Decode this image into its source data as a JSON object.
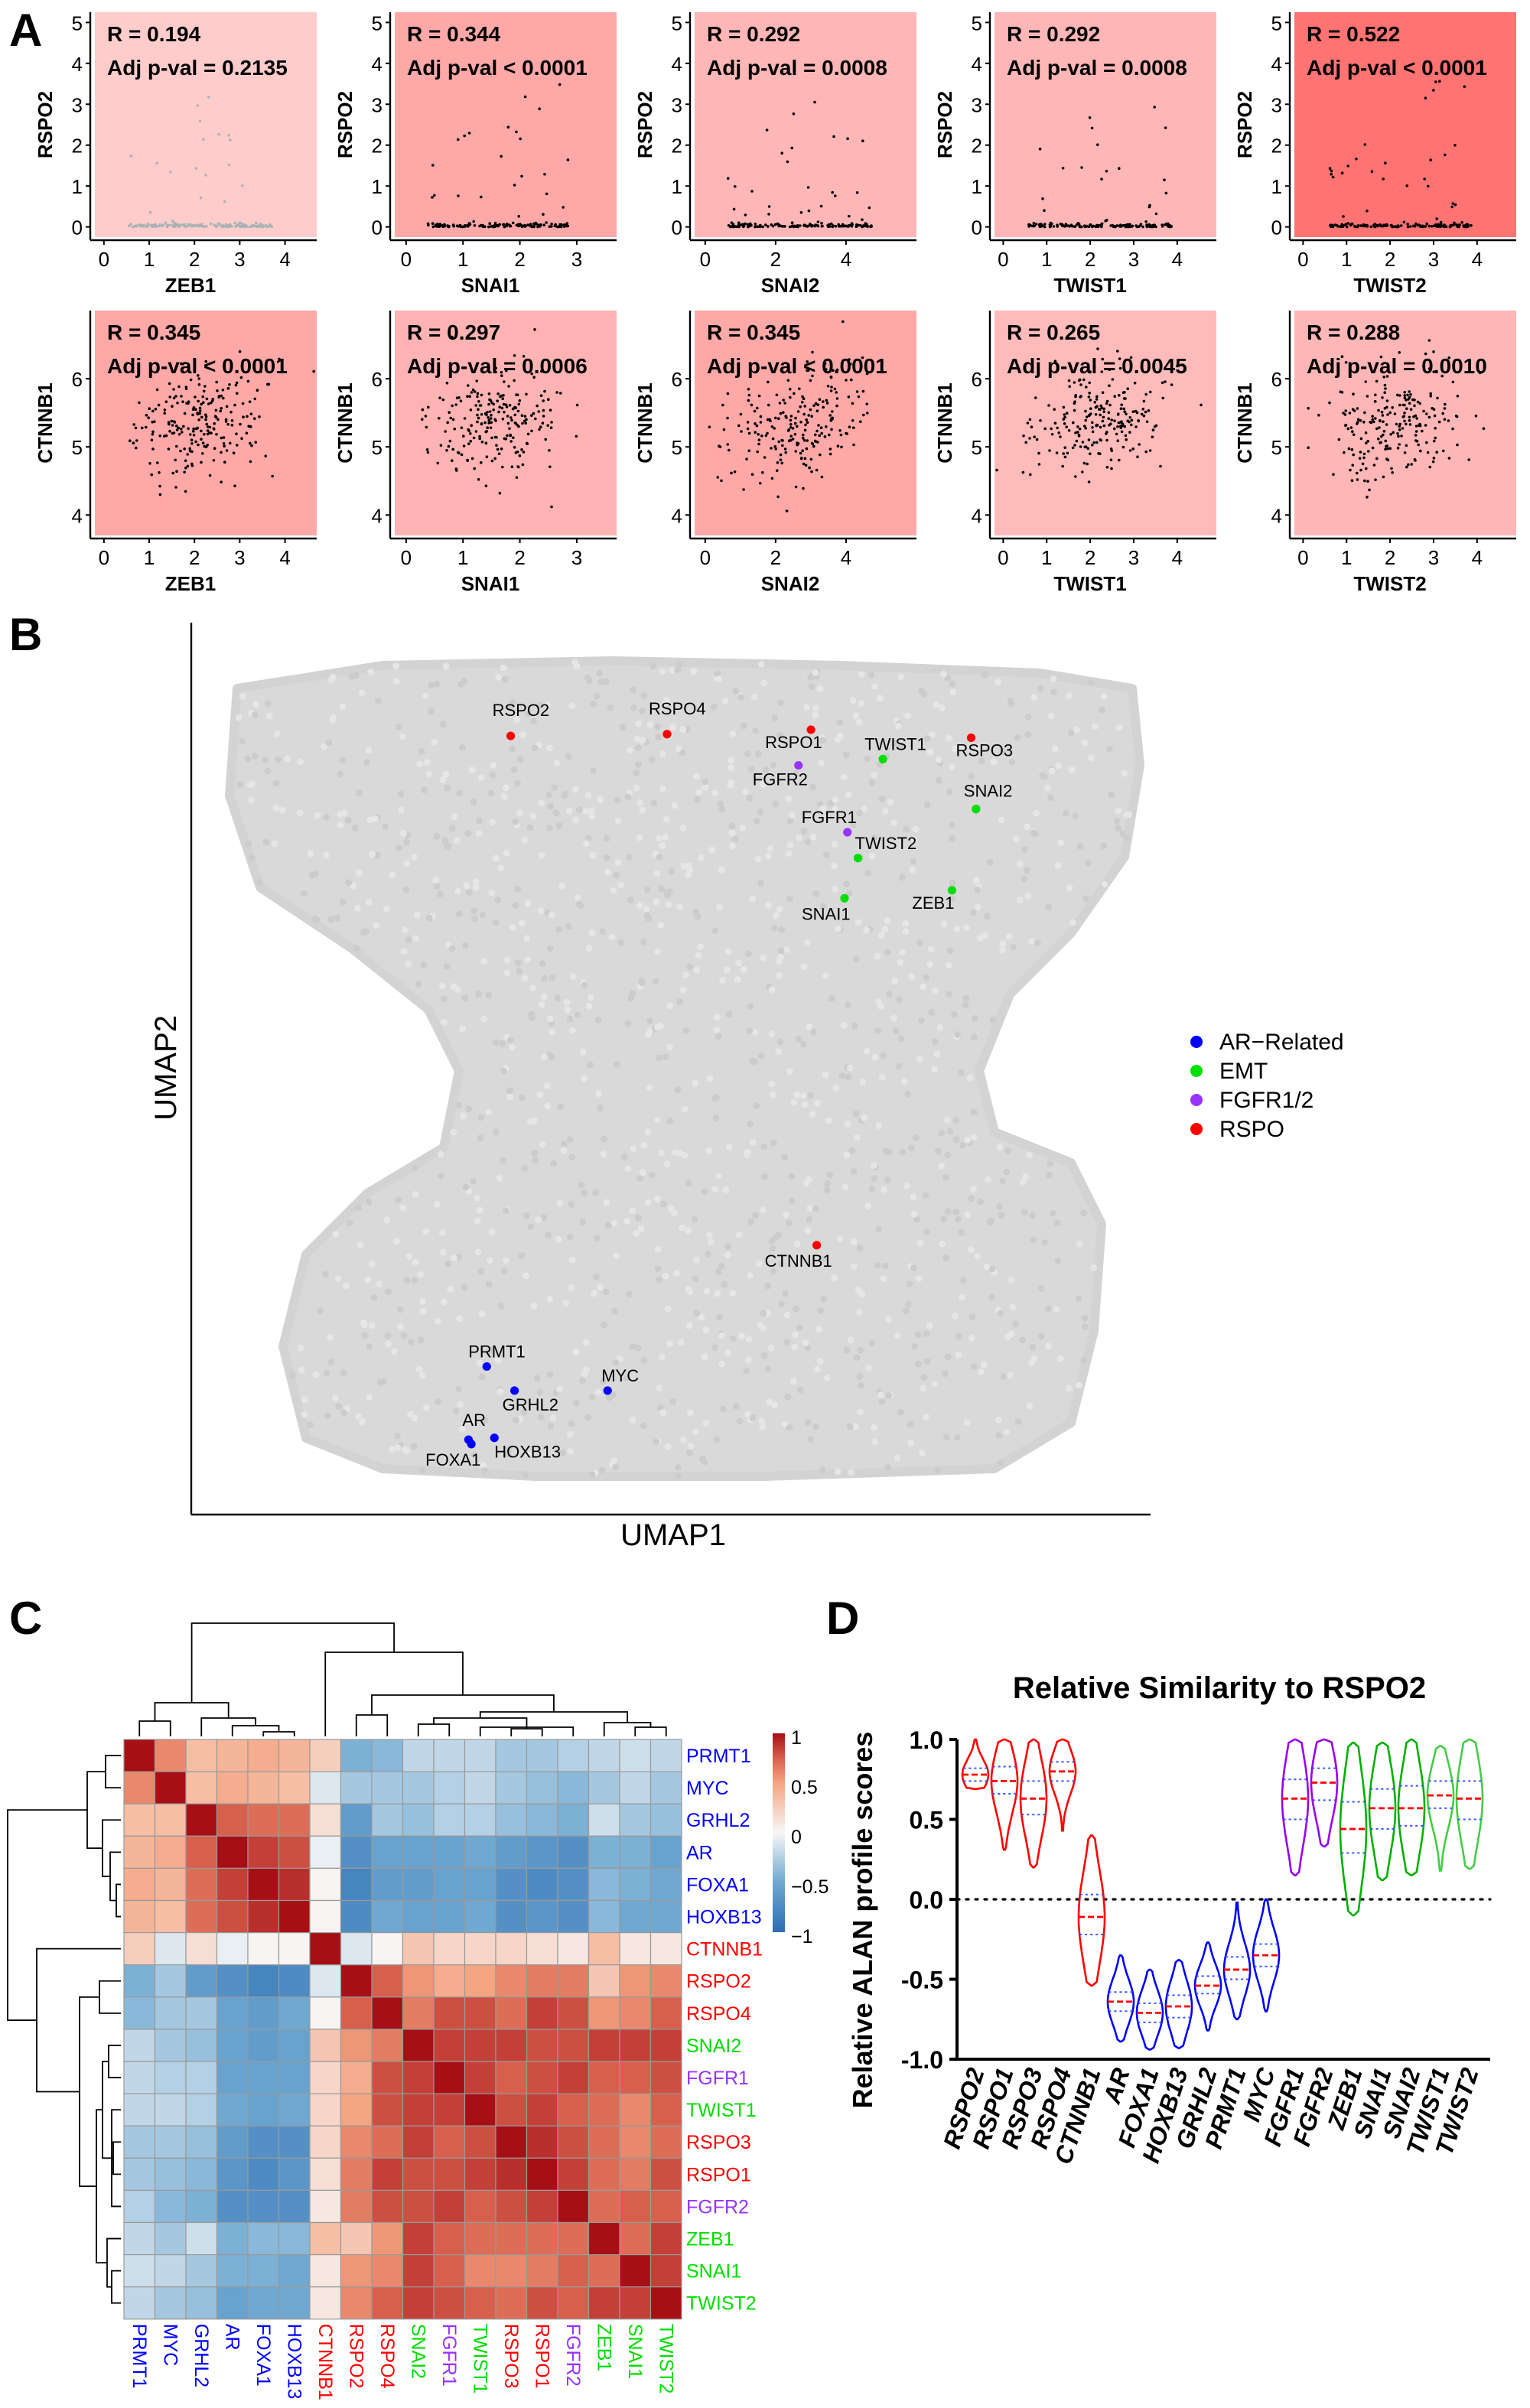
{
  "panel_labels": [
    "A",
    "B",
    "C",
    "D"
  ],
  "chart_data": [
    {
      "panel": "A",
      "type": "scatter",
      "rows": [
        {
          "ylabel": "RSPO2",
          "yticks": [
            0,
            1,
            2,
            3,
            4,
            5
          ],
          "ylim": [
            -0.25,
            5.25
          ],
          "plots": [
            {
              "xlabel": "ZEB1",
              "xticks": [
                0,
                1,
                2,
                3,
                4
              ],
              "xlim": [
                -0.2,
                4.7
              ],
              "r_text": "R = 0.194",
              "p_text": "Adj p-val = 0.2135",
              "bg": "#ffcccc",
              "point_color": "#a9b4b4"
            },
            {
              "xlabel": "SNAI1",
              "xticks": [
                0,
                1,
                2,
                3
              ],
              "xlim": [
                -0.2,
                3.7
              ],
              "r_text": "R = 0.344",
              "p_text": "Adj p-val < 0.0001",
              "bg": "#ffa8a8",
              "point_color": "#000000"
            },
            {
              "xlabel": "SNAI2",
              "xticks": [
                0,
                2,
                4
              ],
              "xlim": [
                -0.3,
                6.0
              ],
              "r_text": "R = 0.292",
              "p_text": "Adj p-val = 0.0008",
              "bg": "#ffb6b6",
              "point_color": "#000000"
            },
            {
              "xlabel": "TWIST1",
              "xticks": [
                0,
                1,
                2,
                3,
                4
              ],
              "xlim": [
                -0.2,
                4.9
              ],
              "r_text": "R = 0.292",
              "p_text": "Adj p-val = 0.0008",
              "bg": "#ffb6b6",
              "point_color": "#000000"
            },
            {
              "xlabel": "TWIST2",
              "xticks": [
                0,
                1,
                2,
                3,
                4
              ],
              "xlim": [
                -0.2,
                4.9
              ],
              "r_text": "R = 0.522",
              "p_text": "Adj p-val < 0.0001",
              "bg": "#ff7373",
              "point_color": "#000000"
            }
          ]
        },
        {
          "ylabel": "CTNNB1",
          "yticks": [
            4,
            5,
            6
          ],
          "ylim": [
            3.7,
            7.0
          ],
          "plots": [
            {
              "xlabel": "ZEB1",
              "xticks": [
                0,
                1,
                2,
                3,
                4
              ],
              "xlim": [
                -0.2,
                4.7
              ],
              "r_text": "R = 0.345",
              "p_text": "Adj p-val < 0.0001",
              "bg": "#ffa8a8",
              "point_color": "#000000"
            },
            {
              "xlabel": "SNAI1",
              "xticks": [
                0,
                1,
                2,
                3
              ],
              "xlim": [
                -0.2,
                3.7
              ],
              "r_text": "R = 0.297",
              "p_text": "Adj p-val = 0.0006",
              "bg": "#ffb3b3",
              "point_color": "#000000"
            },
            {
              "xlabel": "SNAI2",
              "xticks": [
                0,
                2,
                4
              ],
              "xlim": [
                -0.3,
                6.0
              ],
              "r_text": "R = 0.345",
              "p_text": "Adj p-val < 0.0001",
              "bg": "#ffa8a8",
              "point_color": "#000000"
            },
            {
              "xlabel": "TWIST1",
              "xticks": [
                0,
                1,
                2,
                3,
                4
              ],
              "xlim": [
                -0.2,
                4.9
              ],
              "r_text": "R = 0.265",
              "p_text": "Adj p-val = 0.0045",
              "bg": "#ffbaba",
              "point_color": "#000000"
            },
            {
              "xlabel": "TWIST2",
              "xticks": [
                0,
                1,
                2,
                3,
                4
              ],
              "xlim": [
                -0.2,
                4.9
              ],
              "r_text": "R = 0.288",
              "p_text": "Adj p-val = 0.0010",
              "bg": "#ffb6b6",
              "point_color": "#000000"
            }
          ]
        }
      ]
    },
    {
      "panel": "B",
      "type": "scatter",
      "xlabel": "UMAP1",
      "ylabel": "UMAP2",
      "background_point_color": "#d3d3d3",
      "legend": {
        "placement": "right",
        "entries": [
          {
            "label": "AR−Related",
            "color": "#0000ff"
          },
          {
            "label": "EMT",
            "color": "#00e000"
          },
          {
            "label": "FGFR1/2",
            "color": "#9933ff"
          },
          {
            "label": "RSPO",
            "color": "#ff0000"
          }
        ]
      },
      "highlighted_genes": [
        {
          "label": "RSPO2",
          "group": "RSPO",
          "umap1": 3.33,
          "umap2": 8.73
        },
        {
          "label": "RSPO4",
          "group": "RSPO",
          "umap1": 4.96,
          "umap2": 8.75
        },
        {
          "label": "RSPO1",
          "group": "RSPO",
          "umap1": 6.46,
          "umap2": 8.8
        },
        {
          "label": "RSPO3",
          "group": "RSPO",
          "umap1": 8.13,
          "umap2": 8.71
        },
        {
          "label": "TWIST1",
          "group": "EMT",
          "umap1": 7.21,
          "umap2": 8.47
        },
        {
          "label": "FGFR2",
          "group": "FGFR1/2",
          "umap1": 6.33,
          "umap2": 8.4
        },
        {
          "label": "SNAI2",
          "group": "EMT",
          "umap1": 8.18,
          "umap2": 7.91
        },
        {
          "label": "FGFR1",
          "group": "FGFR1/2",
          "umap1": 6.84,
          "umap2": 7.65
        },
        {
          "label": "TWIST2",
          "group": "EMT",
          "umap1": 6.95,
          "umap2": 7.36
        },
        {
          "label": "ZEB1",
          "group": "EMT",
          "umap1": 7.93,
          "umap2": 7.0
        },
        {
          "label": "SNAI1",
          "group": "EMT",
          "umap1": 6.81,
          "umap2": 6.91
        },
        {
          "label": "CTNNB1",
          "group": "RSPO",
          "umap1": 6.52,
          "umap2": 3.02
        },
        {
          "label": "PRMT1",
          "group": "AR−Related",
          "umap1": 3.08,
          "umap2": 1.66
        },
        {
          "label": "GRHL2",
          "group": "AR−Related",
          "umap1": 3.37,
          "umap2": 1.39
        },
        {
          "label": "MYC",
          "group": "AR−Related",
          "umap1": 4.34,
          "umap2": 1.39
        },
        {
          "label": "AR",
          "group": "AR−Related",
          "umap1": 2.89,
          "umap2": 0.84
        },
        {
          "label": "HOXB13",
          "group": "AR−Related",
          "umap1": 3.16,
          "umap2": 0.86
        },
        {
          "label": "FOXA1",
          "group": "AR−Related",
          "umap1": 2.92,
          "umap2": 0.79
        }
      ]
    },
    {
      "panel": "C",
      "type": "heatmap",
      "labels": [
        "PRMT1",
        "MYC",
        "GRHL2",
        "AR",
        "FOXA1",
        "HOXB13",
        "CTNNB1",
        "RSPO2",
        "RSPO4",
        "SNAI2",
        "FGFR1",
        "TWIST1",
        "RSPO3",
        "RSPO1",
        "FGFR2",
        "ZEB1",
        "SNAI1",
        "TWIST2"
      ],
      "label_colors": [
        "#0000ff",
        "#0000ff",
        "#0000ff",
        "#0000ff",
        "#0000ff",
        "#0000ff",
        "#ff0000",
        "#ff0000",
        "#ff0000",
        "#00dd00",
        "#9933ff",
        "#00dd00",
        "#ff0000",
        "#ff0000",
        "#9933ff",
        "#00dd00",
        "#00dd00",
        "#00dd00"
      ],
      "colorbar": {
        "ticks": [
          "1",
          "0.5",
          "0",
          "−0.5",
          "−1"
        ],
        "range": [
          -1,
          1
        ],
        "low_color": "#2c6db2",
        "mid_color": "#f7f7f7",
        "high_color": "#a50f15"
      },
      "values": [
        [
          1,
          0.6,
          0.35,
          0.4,
          0.45,
          0.4,
          0.25,
          -0.45,
          -0.4,
          -0.2,
          -0.2,
          -0.2,
          -0.3,
          -0.3,
          -0.25,
          -0.2,
          -0.15,
          -0.2
        ],
        [
          0.6,
          1,
          0.35,
          0.45,
          0.4,
          0.35,
          -0.1,
          -0.3,
          -0.3,
          -0.3,
          -0.25,
          -0.2,
          -0.3,
          -0.35,
          -0.4,
          -0.3,
          -0.2,
          -0.3
        ],
        [
          0.35,
          0.35,
          1,
          0.75,
          0.7,
          0.7,
          0.15,
          -0.6,
          -0.3,
          -0.35,
          -0.25,
          -0.25,
          -0.35,
          -0.4,
          -0.45,
          -0.15,
          -0.3,
          -0.35
        ],
        [
          0.4,
          0.45,
          0.75,
          1,
          0.85,
          0.8,
          -0.05,
          -0.7,
          -0.55,
          -0.55,
          -0.55,
          -0.5,
          -0.6,
          -0.65,
          -0.7,
          -0.45,
          -0.45,
          -0.55
        ],
        [
          0.45,
          0.4,
          0.7,
          0.85,
          1,
          0.9,
          0.02,
          -0.8,
          -0.6,
          -0.6,
          -0.55,
          -0.55,
          -0.7,
          -0.75,
          -0.7,
          -0.4,
          -0.45,
          -0.5
        ],
        [
          0.4,
          0.35,
          0.7,
          0.8,
          0.9,
          1,
          0.02,
          -0.75,
          -0.5,
          -0.55,
          -0.55,
          -0.5,
          -0.7,
          -0.65,
          -0.7,
          -0.4,
          -0.5,
          -0.5
        ],
        [
          0.25,
          -0.1,
          0.15,
          -0.05,
          0.02,
          0.02,
          1,
          -0.1,
          0.02,
          0.3,
          0.2,
          0.2,
          0.2,
          0.15,
          0.1,
          0.35,
          0.1,
          0.1
        ],
        [
          -0.45,
          -0.3,
          -0.6,
          -0.7,
          -0.8,
          -0.75,
          -0.1,
          1,
          0.75,
          0.55,
          0.45,
          0.5,
          0.6,
          0.65,
          0.65,
          0.3,
          0.55,
          0.6
        ],
        [
          -0.4,
          -0.3,
          -0.3,
          -0.55,
          -0.6,
          -0.5,
          0.02,
          0.75,
          1,
          0.65,
          0.8,
          0.8,
          0.7,
          0.85,
          0.8,
          0.55,
          0.6,
          0.75
        ],
        [
          -0.2,
          -0.3,
          -0.35,
          -0.55,
          -0.6,
          -0.55,
          0.3,
          0.55,
          0.65,
          1,
          0.85,
          0.85,
          0.85,
          0.8,
          0.8,
          0.85,
          0.85,
          0.85
        ],
        [
          -0.2,
          -0.25,
          -0.25,
          -0.55,
          -0.55,
          -0.55,
          0.2,
          0.45,
          0.8,
          0.85,
          1,
          0.85,
          0.75,
          0.8,
          0.85,
          0.75,
          0.75,
          0.8
        ],
        [
          -0.2,
          -0.2,
          -0.25,
          -0.5,
          -0.55,
          -0.5,
          0.2,
          0.5,
          0.8,
          0.85,
          0.85,
          1,
          0.8,
          0.85,
          0.75,
          0.7,
          0.6,
          0.75
        ],
        [
          -0.3,
          -0.3,
          -0.35,
          -0.6,
          -0.7,
          -0.7,
          0.2,
          0.6,
          0.7,
          0.85,
          0.75,
          0.8,
          1,
          0.9,
          0.8,
          0.7,
          0.6,
          0.7
        ],
        [
          -0.3,
          -0.35,
          -0.4,
          -0.65,
          -0.75,
          -0.65,
          0.15,
          0.65,
          0.85,
          0.8,
          0.8,
          0.85,
          0.9,
          1,
          0.85,
          0.7,
          0.65,
          0.8
        ],
        [
          -0.25,
          -0.4,
          -0.45,
          -0.7,
          -0.7,
          -0.7,
          0.1,
          0.65,
          0.8,
          0.8,
          0.85,
          0.75,
          0.8,
          0.85,
          1,
          0.7,
          0.75,
          0.75
        ],
        [
          -0.2,
          -0.3,
          -0.15,
          -0.45,
          -0.4,
          -0.4,
          0.35,
          0.3,
          0.55,
          0.85,
          0.75,
          0.7,
          0.7,
          0.7,
          0.7,
          1,
          0.7,
          0.85
        ],
        [
          -0.15,
          -0.2,
          -0.3,
          -0.45,
          -0.45,
          -0.5,
          0.1,
          0.55,
          0.6,
          0.85,
          0.75,
          0.6,
          0.6,
          0.65,
          0.75,
          0.7,
          1,
          0.85
        ],
        [
          -0.2,
          -0.3,
          -0.35,
          -0.55,
          -0.5,
          -0.5,
          0.1,
          0.6,
          0.75,
          0.85,
          0.8,
          0.75,
          0.7,
          0.8,
          0.75,
          0.85,
          0.85,
          1
        ]
      ]
    },
    {
      "panel": "D",
      "type": "violin",
      "title": "Relative Similarity to RSPO2",
      "ylabel": "Relative ALAN profile scores",
      "ylim": [
        -1.0,
        1.0
      ],
      "yticks": [
        "1.0",
        "0.5",
        "0.0",
        "-0.5",
        "-1.0"
      ],
      "reference_line": 0,
      "median_color": "#ff0000",
      "quartile_color": "#3355ff",
      "categories": [
        {
          "label": "RSPO2",
          "color": "#ff0000",
          "median": 0.78,
          "q1": 0.74,
          "q3": 0.82,
          "min": 0.69,
          "max": 1.0
        },
        {
          "label": "RSPO1",
          "color": "#ff0000",
          "median": 0.74,
          "q1": 0.66,
          "q3": 0.83,
          "min": 0.31,
          "max": 1.0
        },
        {
          "label": "RSPO3",
          "color": "#ff0000",
          "median": 0.63,
          "q1": 0.53,
          "q3": 0.74,
          "min": 0.2,
          "max": 1.0
        },
        {
          "label": "RSPO4",
          "color": "#ff0000",
          "median": 0.8,
          "q1": 0.74,
          "q3": 0.86,
          "min": 0.43,
          "max": 1.0
        },
        {
          "label": "CTNNB1",
          "color": "#ff0000",
          "median": -0.11,
          "q1": -0.22,
          "q3": 0.03,
          "min": -0.54,
          "max": 0.4
        },
        {
          "label": "AR",
          "color": "#0000ff",
          "median": -0.64,
          "q1": -0.7,
          "q3": -0.58,
          "min": -0.89,
          "max": -0.35
        },
        {
          "label": "FOXA1",
          "color": "#0000ff",
          "median": -0.71,
          "q1": -0.77,
          "q3": -0.65,
          "min": -0.94,
          "max": -0.44
        },
        {
          "label": "HOXB13",
          "color": "#0000ff",
          "median": -0.67,
          "q1": -0.74,
          "q3": -0.6,
          "min": -0.93,
          "max": -0.38
        },
        {
          "label": "GRHL2",
          "color": "#0000ff",
          "median": -0.54,
          "q1": -0.59,
          "q3": -0.48,
          "min": -0.82,
          "max": -0.27
        },
        {
          "label": "PRMT1",
          "color": "#0000ff",
          "median": -0.44,
          "q1": -0.5,
          "q3": -0.36,
          "min": -0.75,
          "max": -0.02
        },
        {
          "label": "MYC",
          "color": "#0000ff",
          "median": -0.35,
          "q1": -0.42,
          "q3": -0.28,
          "min": -0.7,
          "max": 0.0
        },
        {
          "label": "FGFR1",
          "color": "#9900ee",
          "median": 0.63,
          "q1": 0.5,
          "q3": 0.75,
          "min": 0.15,
          "max": 1.0
        },
        {
          "label": "FGFR2",
          "color": "#9900ee",
          "median": 0.73,
          "q1": 0.62,
          "q3": 0.82,
          "min": 0.33,
          "max": 1.0
        },
        {
          "label": "ZEB1",
          "color": "#00b000",
          "median": 0.44,
          "q1": 0.29,
          "q3": 0.61,
          "min": -0.1,
          "max": 0.98
        },
        {
          "label": "SNAI1",
          "color": "#00b000",
          "median": 0.57,
          "q1": 0.44,
          "q3": 0.69,
          "min": 0.12,
          "max": 0.98
        },
        {
          "label": "SNAI2",
          "color": "#00b000",
          "median": 0.57,
          "q1": 0.46,
          "q3": 0.71,
          "min": 0.15,
          "max": 1.0
        },
        {
          "label": "TWIST1",
          "color": "#44cc44",
          "median": 0.65,
          "q1": 0.57,
          "q3": 0.74,
          "min": 0.18,
          "max": 0.96
        },
        {
          "label": "TWIST2",
          "color": "#44cc44",
          "median": 0.63,
          "q1": 0.5,
          "q3": 0.74,
          "min": 0.19,
          "max": 1.0
        }
      ]
    }
  ]
}
